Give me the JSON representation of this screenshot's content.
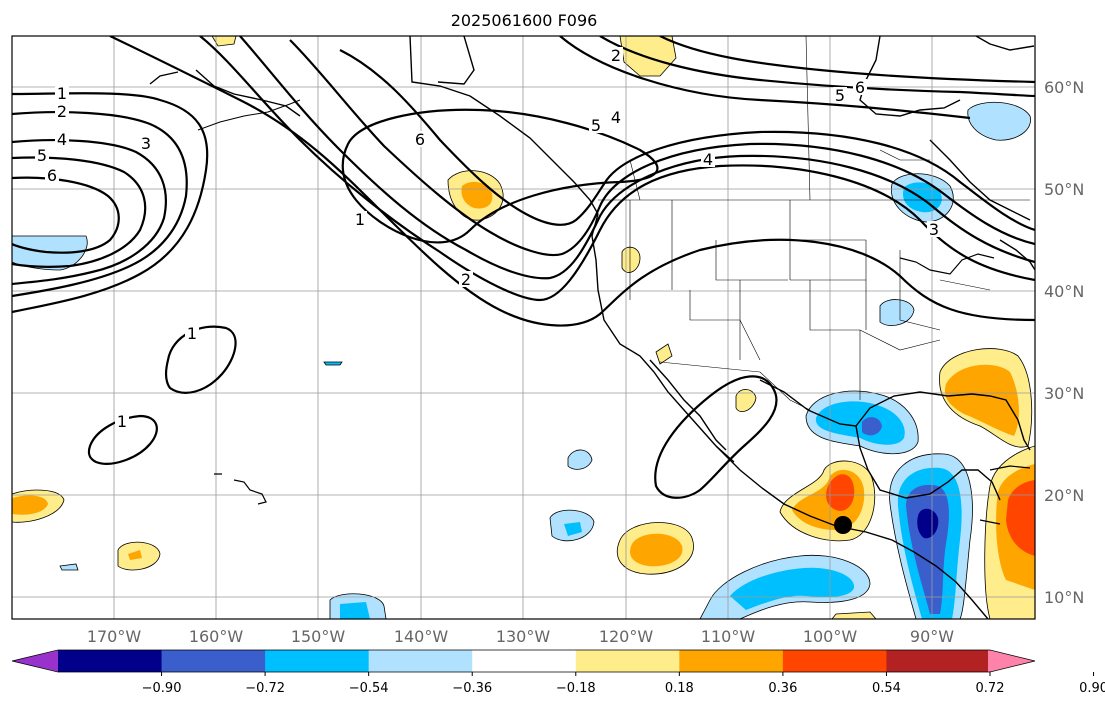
{
  "title": "2025061600 F096",
  "axes": {
    "lon_labels": [
      "170°W",
      "160°W",
      "150°W",
      "140°W",
      "130°W",
      "120°W",
      "110°W",
      "100°W",
      "90°W"
    ],
    "lat_labels": [
      "10°N",
      "20°N",
      "30°N",
      "40°N",
      "50°N",
      "60°N"
    ]
  },
  "colorbar": {
    "tick_labels": [
      "−0.90",
      "−0.72",
      "−0.54",
      "−0.36",
      "−0.18",
      "0.18",
      "0.36",
      "0.54",
      "0.72",
      "0.90"
    ],
    "colors": [
      "#9932cc",
      "#00008b",
      "#3a5fcd",
      "#00bfff",
      "#b0e2ff",
      "#ffffff",
      "#ffec8b",
      "#ffa500",
      "#ff4500",
      "#b22222",
      "#ff82ab"
    ]
  },
  "contour_labels": [
    "1",
    "2",
    "4",
    "5",
    "6",
    "3",
    "1",
    "2",
    "6",
    "5",
    "4",
    "2",
    "5",
    "6",
    "4",
    "3",
    "1",
    "1"
  ]
}
